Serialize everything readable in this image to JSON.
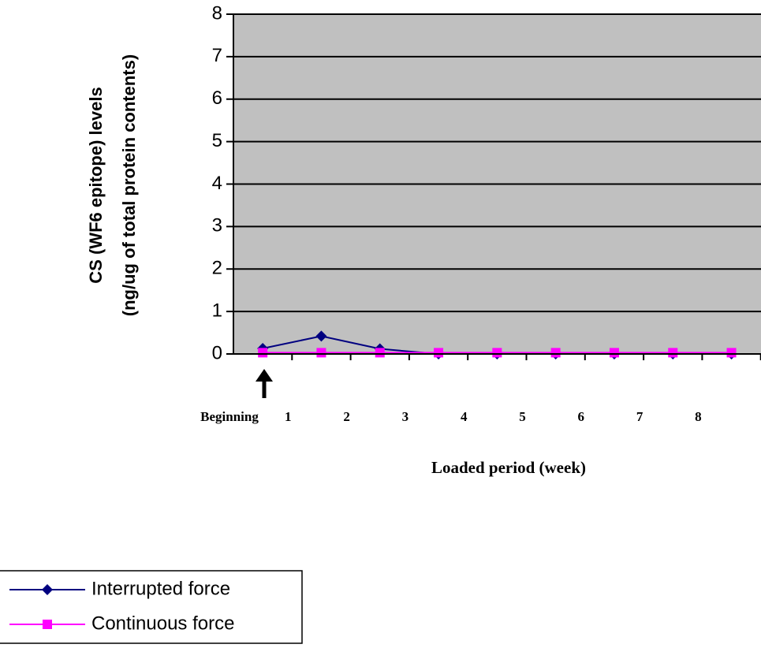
{
  "chart_data": {
    "type": "line",
    "y_title_lines": [
      "CS (WF6 epitope) levels",
      "(ng/ug of total protein contents)"
    ],
    "x_title": "Loaded period (week)",
    "categories": [
      "Beginning",
      "1",
      "2",
      "3",
      "4",
      "5",
      "6",
      "7",
      "8"
    ],
    "series": [
      {
        "name": "Interrupted force",
        "color": "#000080",
        "marker": "diamond",
        "values": [
          0.13,
          0.42,
          0.12,
          0,
          0,
          0,
          0,
          0,
          0
        ]
      },
      {
        "name": "Continuous force",
        "color": "#ff00ff",
        "marker": "square",
        "values": [
          0.03,
          0.03,
          0.03,
          0.03,
          0.03,
          0.03,
          0.03,
          0.03,
          0.03
        ]
      }
    ],
    "ylim": [
      0,
      8
    ],
    "yticks": [
      0,
      1,
      2,
      3,
      4,
      5,
      6,
      7,
      8
    ],
    "grid": true
  }
}
